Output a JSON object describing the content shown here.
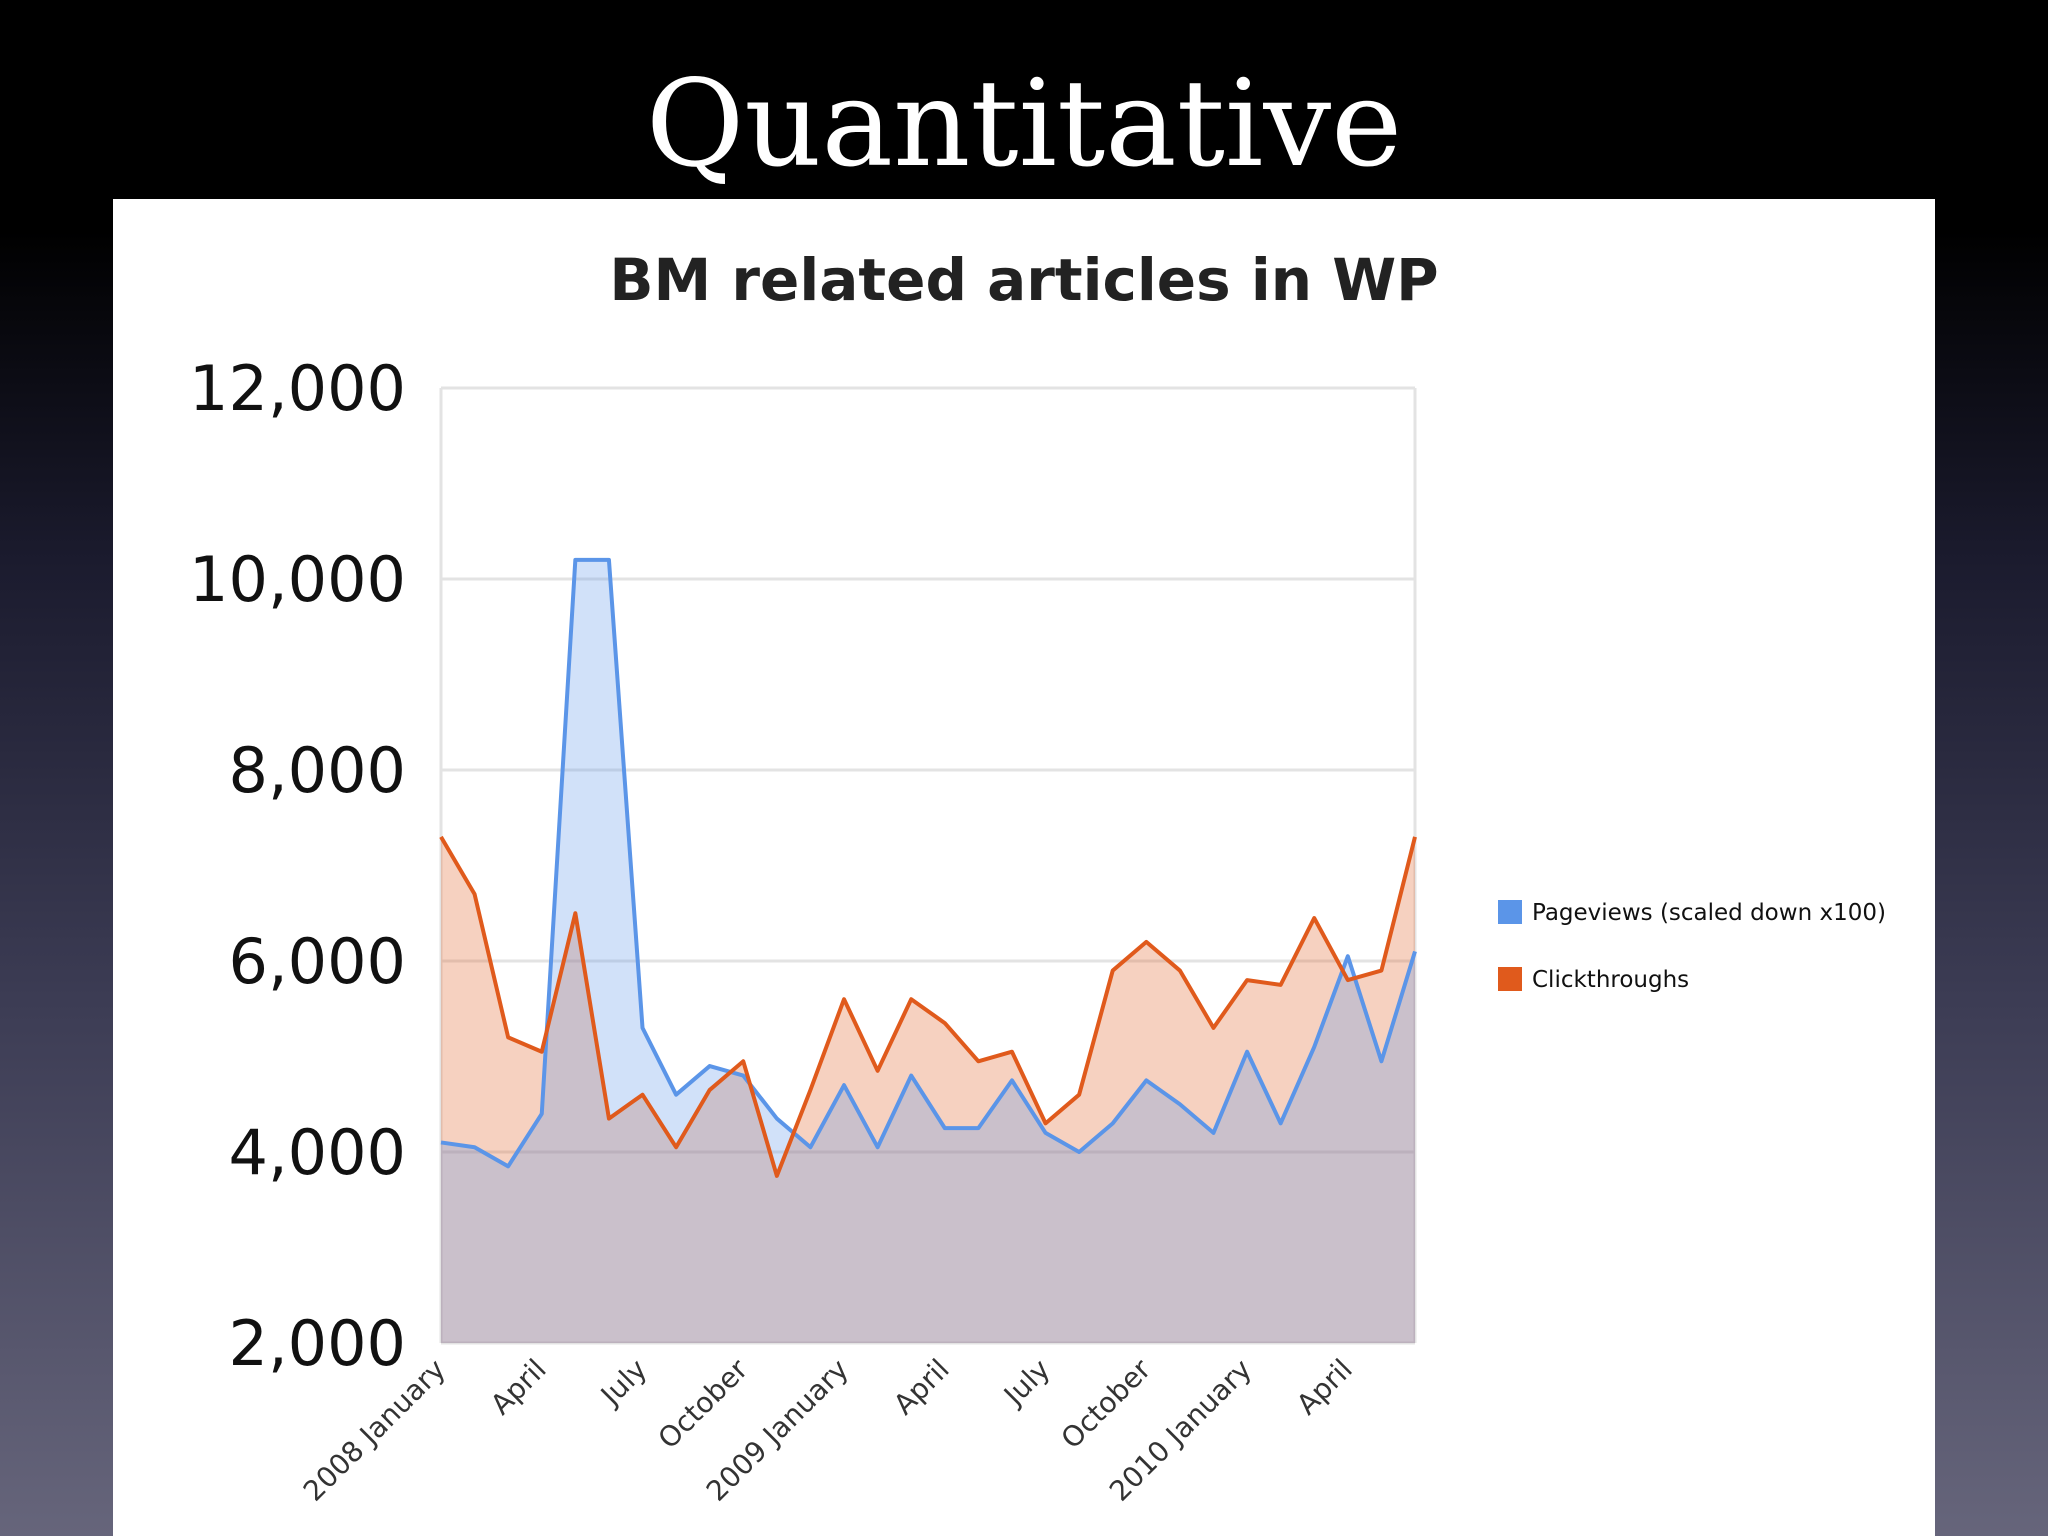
{
  "slide": {
    "title": "Quantitative"
  },
  "colors": {
    "pageviews": "#5b95e8",
    "clickthroughs": "#e05a1c",
    "grid": "#e3e3e3"
  },
  "chart_data": {
    "type": "area",
    "title": "BM related articles in WP",
    "xlabel": "",
    "ylabel": "",
    "ylim": [
      2000,
      12000
    ],
    "y_ticks": [
      "2,000",
      "4,000",
      "6,000",
      "8,000",
      "10,000",
      "12,000"
    ],
    "y_tick_values": [
      2000,
      4000,
      6000,
      8000,
      10000,
      12000
    ],
    "x": [
      "2008-01",
      "2008-02",
      "2008-03",
      "2008-04",
      "2008-05",
      "2008-06",
      "2008-07",
      "2008-08",
      "2008-09",
      "2008-10",
      "2008-11",
      "2008-12",
      "2009-01",
      "2009-02",
      "2009-03",
      "2009-04",
      "2009-05",
      "2009-06",
      "2009-07",
      "2009-08",
      "2009-09",
      "2009-10",
      "2009-11",
      "2009-12",
      "2010-01",
      "2010-02",
      "2010-03",
      "2010-04",
      "2010-05",
      "2010-06"
    ],
    "x_tick_labels": [
      {
        "index": 0,
        "label": "2008 January"
      },
      {
        "index": 3,
        "label": "April"
      },
      {
        "index": 6,
        "label": "July"
      },
      {
        "index": 9,
        "label": "October"
      },
      {
        "index": 12,
        "label": "2009 January"
      },
      {
        "index": 15,
        "label": "April"
      },
      {
        "index": 18,
        "label": "July"
      },
      {
        "index": 21,
        "label": "October"
      },
      {
        "index": 24,
        "label": "2010 January"
      },
      {
        "index": 27,
        "label": "April"
      }
    ],
    "series": [
      {
        "name": "Pageviews (scaled down x100)",
        "values": [
          4100,
          4050,
          3850,
          4400,
          10200,
          10200,
          5300,
          4600,
          4900,
          4800,
          4350,
          4050,
          4700,
          4050,
          4800,
          4250,
          4250,
          4750,
          4200,
          4000,
          4300,
          4750,
          4500,
          4200,
          5050,
          4300,
          5100,
          6050,
          4950,
          6100
        ]
      },
      {
        "name": "Clickthroughs",
        "values": [
          7300,
          6700,
          5200,
          5050,
          6500,
          4350,
          4600,
          4050,
          4650,
          4950,
          3750,
          4650,
          5600,
          4850,
          5600,
          5350,
          4950,
          5050,
          4300,
          4600,
          5900,
          6200,
          5900,
          5300,
          5800,
          5750,
          6450,
          5800,
          5900,
          7300
        ]
      }
    ],
    "grid": true,
    "legend_position": "right"
  }
}
